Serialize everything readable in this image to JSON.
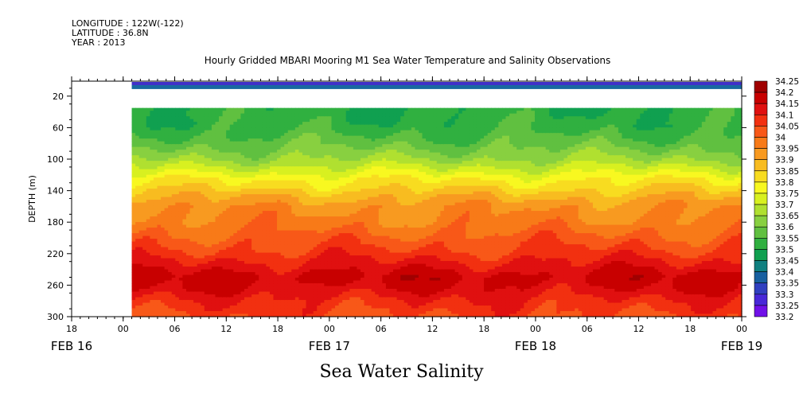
{
  "header": {
    "longitude": "LONGITUDE : 122W(-122)",
    "latitude": "LATITUDE : 36.8N",
    "year": "YEAR : 2013"
  },
  "chart_data": {
    "type": "heatmap",
    "title": "Hourly Gridded MBARI Mooring M1 Sea Water Temperature and Salinity Observations",
    "subtitle": "Sea Water Salinity",
    "ylabel": "DEPTH (m)",
    "ylim": [
      300,
      1
    ],
    "y_ticks": [
      "20",
      "60",
      "100",
      "140",
      "180",
      "220",
      "260",
      "300"
    ],
    "y_tick_values": [
      20,
      60,
      100,
      140,
      180,
      220,
      260,
      300
    ],
    "x_range_hours": [
      -6,
      72
    ],
    "x_tick_labels": [
      "18",
      "00",
      "06",
      "12",
      "18",
      "00",
      "06",
      "12",
      "18",
      "00",
      "06",
      "12",
      "18",
      "00"
    ],
    "x_tick_hours": [
      -6,
      0,
      6,
      12,
      18,
      24,
      30,
      36,
      42,
      48,
      54,
      60,
      66,
      72
    ],
    "date_labels": [
      {
        "label": "FEB 16",
        "hour": -6
      },
      {
        "label": "FEB 17",
        "hour": 24
      },
      {
        "label": "FEB 18",
        "hour": 48
      },
      {
        "label": "FEB 19",
        "hour": 72
      }
    ],
    "colorbar": {
      "labels": [
        "34.25",
        "34.2",
        "34.15",
        "34.1",
        "34.05",
        "34",
        "33.95",
        "33.9",
        "33.85",
        "33.8",
        "33.75",
        "33.7",
        "33.65",
        "33.6",
        "33.55",
        "33.5",
        "33.45",
        "33.4",
        "33.35",
        "33.3",
        "33.25",
        "33.2"
      ],
      "colors": [
        "#a00000",
        "#c80000",
        "#e01010",
        "#f23010",
        "#f85818",
        "#f87a18",
        "#f89a20",
        "#f8bc20",
        "#f8dc20",
        "#f8f820",
        "#d8f020",
        "#b0e030",
        "#88d040",
        "#60c040",
        "#30b040",
        "#10a050",
        "#108080",
        "#1860a0",
        "#3040c0",
        "#4828d8",
        "#7010e8",
        "#c010f0"
      ]
    },
    "data_start_hour": 1,
    "surface_depth_range": [
      1,
      10
    ],
    "surface_value": 33.35,
    "gap_depth_range": [
      10,
      35
    ],
    "depth_profile": [
      {
        "depth": 35,
        "value": 33.56
      },
      {
        "depth": 60,
        "value": 33.58
      },
      {
        "depth": 80,
        "value": 33.63
      },
      {
        "depth": 100,
        "value": 33.7
      },
      {
        "depth": 115,
        "value": 33.78
      },
      {
        "depth": 125,
        "value": 33.84
      },
      {
        "depth": 135,
        "value": 33.88
      },
      {
        "depth": 145,
        "value": 33.93
      },
      {
        "depth": 160,
        "value": 33.99
      },
      {
        "depth": 180,
        "value": 34.02
      },
      {
        "depth": 200,
        "value": 34.07
      },
      {
        "depth": 220,
        "value": 34.12
      },
      {
        "depth": 235,
        "value": 34.17
      },
      {
        "depth": 250,
        "value": 34.22
      },
      {
        "depth": 265,
        "value": 34.19
      },
      {
        "depth": 280,
        "value": 34.14
      },
      {
        "depth": 300,
        "value": 34.1
      }
    ]
  }
}
